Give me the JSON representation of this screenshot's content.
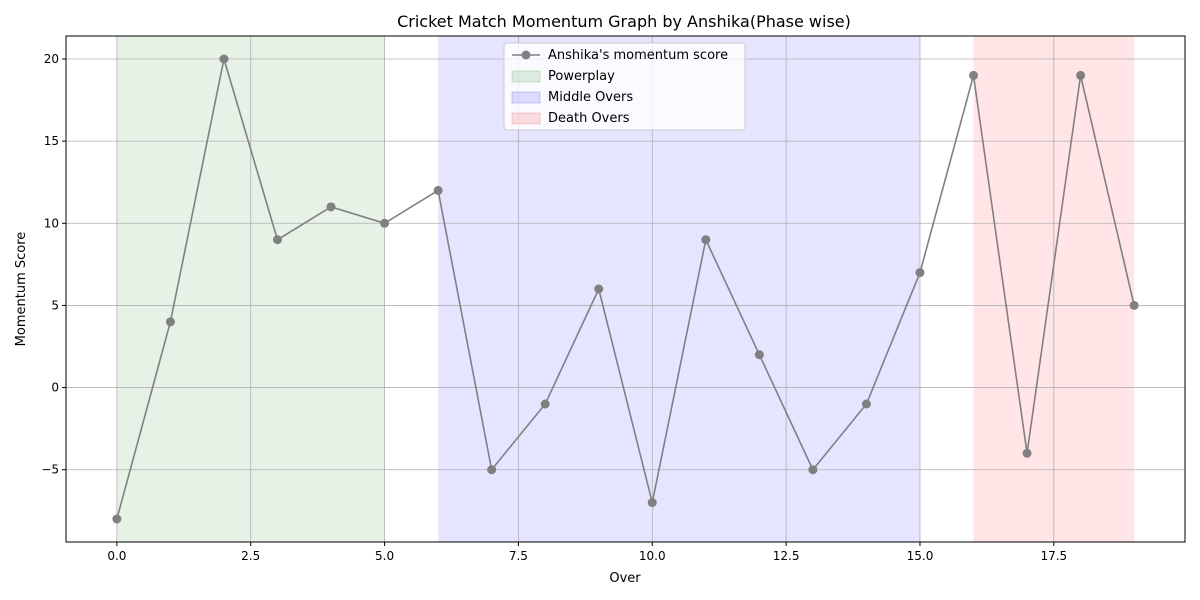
{
  "chart_data": {
    "type": "line",
    "title": "Cricket Match Momentum Graph by Anshika(Phase wise)",
    "xlabel": "Over",
    "ylabel": "Momentum Score",
    "xlim": [
      -0.95,
      19.95
    ],
    "ylim": [
      -9.4,
      21.4
    ],
    "x_ticks": [
      0.0,
      2.5,
      5.0,
      7.5,
      10.0,
      12.5,
      15.0,
      17.5
    ],
    "x_tick_labels": [
      "0.0",
      "2.5",
      "5.0",
      "7.5",
      "10.0",
      "12.5",
      "15.0",
      "17.5"
    ],
    "y_ticks": [
      -5,
      0,
      5,
      10,
      15,
      20
    ],
    "y_tick_labels": [
      "−5",
      "0",
      "5",
      "10",
      "15",
      "20"
    ],
    "grid": true,
    "legend_position": "top-center",
    "series": [
      {
        "name": "Anshika's momentum score",
        "color": "#808080",
        "marker": "circle",
        "x": [
          0,
          1,
          2,
          3,
          4,
          5,
          6,
          7,
          8,
          9,
          10,
          11,
          12,
          13,
          14,
          15,
          16,
          17,
          18,
          19
        ],
        "values": [
          -8,
          4,
          20,
          9,
          11,
          10,
          12,
          -5,
          -1,
          6,
          -7,
          9,
          2,
          -5,
          -1,
          7,
          19,
          -4,
          19,
          5
        ]
      }
    ],
    "phases": [
      {
        "name": "Powerplay",
        "start": 0,
        "end": 5,
        "color": "#008000",
        "alpha": 0.1
      },
      {
        "name": "Middle Overs",
        "start": 6,
        "end": 15,
        "color": "#0000ff",
        "alpha": 0.1
      },
      {
        "name": "Death Overs",
        "start": 16,
        "end": 19,
        "color": "#ff0000",
        "alpha": 0.1
      }
    ]
  }
}
